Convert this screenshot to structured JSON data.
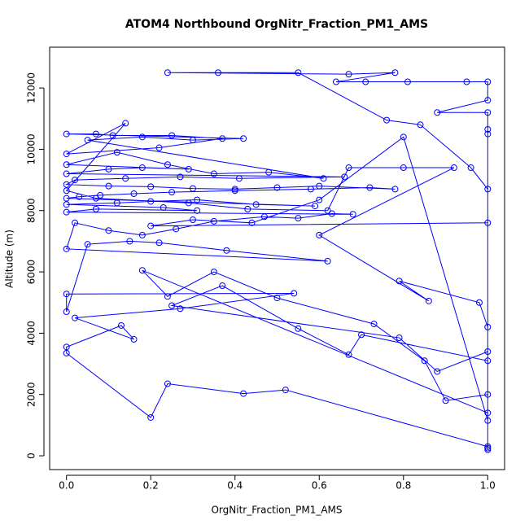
{
  "chart_data": {
    "type": "line",
    "title": "ATOM4 Northbound OrgNitr_Fraction_PM1_AMS",
    "x_label": "OrgNitr_Fraction_PM1_AMS",
    "y_label": "Altitude (m)",
    "color": "#0000ff",
    "markers": true,
    "xlim": [
      -0.04,
      1.04
    ],
    "ylim": [
      -450,
      13330
    ],
    "xticks": [
      {
        "value": 0,
        "label": "0.0"
      },
      {
        "value": 0.2,
        "label": "0.2"
      },
      {
        "value": 0.4,
        "label": "0.4"
      },
      {
        "value": 0.6,
        "label": "0.6"
      },
      {
        "value": 0.8,
        "label": "0.8"
      },
      {
        "value": 1,
        "label": "1.0"
      }
    ],
    "yticks": [
      0,
      2000,
      4000,
      6000,
      8000,
      10000,
      12000
    ],
    "x": [
      1.0,
      1.0,
      0.52,
      0.42,
      0.24,
      0.2,
      0.0,
      0.0,
      0.13,
      0.16,
      0.02,
      0.27,
      0.54,
      0.0,
      0.0,
      0.05,
      0.15,
      0.22,
      0.38,
      0.62,
      0.0,
      0.02,
      0.1,
      0.18,
      0.26,
      0.35,
      0.47,
      0.55,
      0.63,
      0.68,
      0.0,
      0.07,
      0.31,
      0.23,
      0.0,
      0.12,
      0.2,
      0.31,
      0.45,
      0.59,
      0.0,
      0.03,
      0.08,
      0.16,
      0.25,
      0.4,
      0.58,
      0.72,
      0.78,
      0.6,
      0.5,
      0.4,
      0.3,
      0.2,
      0.1,
      0.0,
      0.02,
      0.14,
      0.27,
      0.41,
      0.66,
      0.0,
      0.1,
      0.18,
      0.29,
      0.0,
      0.12,
      0.24,
      0.35,
      0.48,
      0.61,
      0.05,
      0.18,
      0.3,
      0.42,
      0.0,
      0.07,
      0.11,
      0.25,
      0.37,
      0.22,
      0.0,
      0.14,
      0.0,
      0.07,
      0.29,
      0.43,
      0.62,
      0.67,
      0.8,
      0.92,
      0.6,
      0.86,
      0.79,
      0.98,
      1.0,
      1.0,
      0.88,
      0.79,
      0.25,
      0.37,
      0.55,
      0.67,
      0.7,
      1.0,
      1.0,
      0.9,
      0.85,
      0.73,
      0.5,
      0.35,
      0.24,
      0.18,
      1.0,
      1.0,
      0.8,
      0.6,
      0.44,
      0.3,
      0.2,
      1.0,
      1.0,
      0.96,
      0.84,
      0.76,
      0.55,
      0.36,
      0.24,
      0.67,
      0.78,
      0.64,
      0.71,
      0.81,
      0.95,
      1.0,
      1.0,
      0.88,
      1.0,
      1.0,
      1.0,
      1.0
    ],
    "values": [
      200,
      300,
      2150,
      2030,
      2350,
      1250,
      3350,
      3550,
      4250,
      3800,
      4500,
      4800,
      5300,
      5280,
      4700,
      6900,
      7000,
      6950,
      6700,
      6350,
      6750,
      7600,
      7350,
      7200,
      7400,
      7650,
      7800,
      7750,
      7900,
      7880,
      7950,
      8050,
      8000,
      8100,
      8200,
      8250,
      8300,
      8350,
      8200,
      8150,
      8400,
      8450,
      8500,
      8550,
      8600,
      8650,
      8700,
      8750,
      8700,
      8800,
      8750,
      8700,
      8720,
      8780,
      8800,
      8850,
      9000,
      9050,
      9100,
      9050,
      9100,
      9200,
      9350,
      9400,
      9350,
      9500,
      9900,
      9500,
      9200,
      9250,
      9050,
      10300,
      10400,
      10300,
      10350,
      10500,
      10500,
      10450,
      10450,
      10350,
      10050,
      9850,
      10850,
      8650,
      8400,
      8250,
      8050,
      8000,
      9400,
      9400,
      9400,
      7200,
      5050,
      5700,
      5000,
      4200,
      3400,
      2750,
      3850,
      4900,
      5550,
      4150,
      3300,
      3950,
      3100,
      2000,
      1800,
      3100,
      4300,
      5150,
      6000,
      5200,
      6050,
      1400,
      1150,
      10400,
      8350,
      7600,
      7700,
      7500,
      7600,
      8700,
      9400,
      10800,
      10950,
      12500,
      12500,
      12500,
      12450,
      12500,
      12200,
      12200,
      12200,
      12200,
      12200,
      11600,
      11200,
      11200,
      10500,
      10650,
      250
    ]
  }
}
